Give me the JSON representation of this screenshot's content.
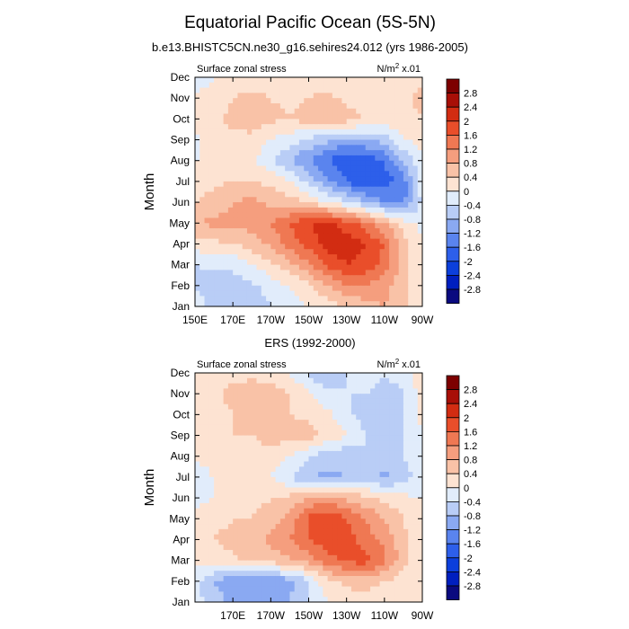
{
  "figure": {
    "title": "Equatorial Pacific Ocean (5S-5N)"
  },
  "chart_data": [
    {
      "type": "heatmap",
      "title": "b.e13.BHISTC5CN.ne30_g16.sehires24.012 (yrs 1986-2005)",
      "left_label": "Surface zonal stress",
      "units_label": {
        "base": "N/m",
        "sup": "2",
        "suffix": " x.01"
      },
      "ylabel": "Month",
      "yticks": [
        "Jan",
        "Feb",
        "Mar",
        "Apr",
        "May",
        "Jun",
        "Jul",
        "Aug",
        "Sep",
        "Oct",
        "Nov",
        "Dec"
      ],
      "xlim": [
        150,
        270
      ],
      "xticks": [
        {
          "value": 150,
          "label": "150E"
        },
        {
          "value": 170,
          "label": "170E"
        },
        {
          "value": 190,
          "label": "170W"
        },
        {
          "value": 210,
          "label": "150W"
        },
        {
          "value": 230,
          "label": "130W"
        },
        {
          "value": 250,
          "label": "110W"
        },
        {
          "value": 270,
          "label": "90W"
        }
      ],
      "x": [
        150,
        160,
        170,
        180,
        190,
        200,
        210,
        220,
        230,
        240,
        250,
        260,
        270
      ],
      "months": [
        "Jan",
        "Feb",
        "Mar",
        "Apr",
        "May",
        "Jun",
        "Jul",
        "Aug",
        "Sep",
        "Oct",
        "Nov",
        "Dec"
      ],
      "z": [
        [
          0.0,
          -0.7,
          -0.7,
          -0.7,
          -0.4,
          -0.2,
          0.0,
          0.2,
          0.4,
          0.6,
          0.8,
          0.5,
          0.0
        ],
        [
          -0.5,
          -0.6,
          -0.6,
          -0.5,
          -0.2,
          0.0,
          0.3,
          0.8,
          1.2,
          1.2,
          1.0,
          0.5,
          0.0
        ],
        [
          -0.4,
          -0.3,
          -0.3,
          0.0,
          0.3,
          0.7,
          1.1,
          1.7,
          2.0,
          1.9,
          1.4,
          0.6,
          0.0
        ],
        [
          0.2,
          0.3,
          0.4,
          0.6,
          0.9,
          1.4,
          1.8,
          2.2,
          2.2,
          2.0,
          1.6,
          0.5,
          0.0
        ],
        [
          0.8,
          0.9,
          0.9,
          1.0,
          1.2,
          1.6,
          2.0,
          2.1,
          1.8,
          1.4,
          0.8,
          0.2,
          -0.1
        ],
        [
          0.4,
          0.6,
          0.8,
          0.9,
          0.7,
          0.6,
          0.3,
          0.0,
          -0.4,
          -0.8,
          -1.2,
          -1.3,
          -0.3
        ],
        [
          0.2,
          0.3,
          0.4,
          0.4,
          0.3,
          0.0,
          -0.5,
          -1.1,
          -1.6,
          -2.0,
          -1.8,
          -1.4,
          -0.2
        ],
        [
          0.0,
          0.0,
          0.0,
          0.0,
          -0.3,
          -0.8,
          -1.2,
          -1.6,
          -2.0,
          -1.9,
          -1.6,
          -0.8,
          0.0
        ],
        [
          -0.1,
          0.2,
          0.3,
          0.3,
          0.0,
          -0.2,
          -0.5,
          -0.7,
          -0.9,
          -0.8,
          -0.6,
          0.0,
          0.1
        ],
        [
          0.1,
          0.3,
          0.5,
          0.6,
          0.5,
          0.4,
          0.6,
          0.8,
          0.6,
          0.4,
          0.2,
          0.3,
          0.4
        ],
        [
          0.1,
          0.2,
          0.4,
          0.5,
          0.4,
          0.3,
          0.4,
          0.5,
          0.3,
          0.2,
          0.1,
          0.3,
          0.5
        ],
        [
          -0.3,
          0.0,
          0.1,
          0.2,
          0.2,
          0.2,
          0.2,
          0.2,
          0.1,
          0.0,
          0.0,
          0.2,
          0.3
        ]
      ]
    },
    {
      "type": "heatmap",
      "title": "ERS (1992-2000)",
      "left_label": "Surface zonal stress",
      "units_label": {
        "base": "N/m",
        "sup": "2",
        "suffix": " x.01"
      },
      "ylabel": "Month",
      "yticks": [
        "Jan",
        "Feb",
        "Mar",
        "Apr",
        "May",
        "Jun",
        "Jul",
        "Aug",
        "Sep",
        "Oct",
        "Nov",
        "Dec"
      ],
      "xlim": [
        150,
        270
      ],
      "xticks": [
        {
          "value": 170,
          "label": "170E"
        },
        {
          "value": 190,
          "label": "170W"
        },
        {
          "value": 210,
          "label": "150W"
        },
        {
          "value": 230,
          "label": "130W"
        },
        {
          "value": 250,
          "label": "110W"
        },
        {
          "value": 270,
          "label": "90W"
        }
      ],
      "x": [
        150,
        160,
        170,
        180,
        190,
        200,
        210,
        220,
        230,
        240,
        250,
        260,
        270
      ],
      "months": [
        "Jan",
        "Feb",
        "Mar",
        "Apr",
        "May",
        "Jun",
        "Jul",
        "Aug",
        "Sep",
        "Oct",
        "Nov",
        "Dec"
      ],
      "z": [
        [
          -0.2,
          -0.6,
          -0.9,
          -0.9,
          -1.2,
          -0.8,
          -0.4,
          0.0,
          0.2,
          0.2,
          0.1,
          0.2,
          0.0
        ],
        [
          -0.3,
          -0.8,
          -1.1,
          -1.2,
          -1.2,
          -0.9,
          -0.4,
          0.3,
          0.5,
          0.6,
          0.4,
          0.2,
          0.0
        ],
        [
          0.2,
          0.3,
          0.3,
          0.5,
          0.6,
          0.7,
          1.0,
          1.4,
          1.7,
          1.8,
          1.3,
          0.6,
          0.0
        ],
        [
          0.3,
          0.4,
          0.5,
          0.7,
          0.9,
          1.2,
          1.6,
          1.9,
          1.8,
          1.4,
          1.1,
          0.5,
          0.0
        ],
        [
          0.2,
          0.3,
          0.4,
          0.4,
          0.6,
          0.9,
          1.7,
          2.0,
          1.6,
          1.2,
          0.8,
          0.4,
          0.0
        ],
        [
          -0.2,
          0.0,
          0.2,
          0.2,
          0.4,
          0.5,
          0.8,
          0.9,
          0.7,
          0.5,
          0.3,
          0.1,
          0.0
        ],
        [
          -0.2,
          0.0,
          0.1,
          0.1,
          0.0,
          -0.4,
          -0.8,
          -0.9,
          -0.8,
          -0.7,
          -0.9,
          -0.6,
          -0.2
        ],
        [
          0.0,
          0.2,
          0.2,
          0.3,
          0.3,
          0.0,
          -0.4,
          -0.6,
          -0.7,
          -0.4,
          -0.5,
          -0.4,
          -0.1
        ],
        [
          0.1,
          0.3,
          0.4,
          0.4,
          0.5,
          0.6,
          0.6,
          0.3,
          0.0,
          -0.4,
          -0.6,
          -0.4,
          0.0
        ],
        [
          0.1,
          0.3,
          0.4,
          0.5,
          0.4,
          0.4,
          0.3,
          0.1,
          -0.3,
          -0.6,
          -0.8,
          -0.4,
          0.1
        ],
        [
          0.2,
          0.3,
          0.5,
          0.6,
          0.6,
          0.4,
          0.1,
          -0.3,
          -0.4,
          -0.4,
          -0.7,
          -0.4,
          0.2
        ],
        [
          0.2,
          0.4,
          0.3,
          0.3,
          0.2,
          0.0,
          -0.5,
          -0.8,
          -0.4,
          0.0,
          -0.3,
          -0.2,
          0.2
        ]
      ]
    }
  ],
  "colorbar": {
    "levels": [
      -2.8,
      -2.4,
      -2,
      -1.6,
      -1.2,
      -0.8,
      -0.4,
      0,
      0.4,
      0.8,
      1.2,
      1.6,
      2,
      2.4,
      2.8
    ],
    "labels": [
      "-2.8",
      "-2.4",
      "-2",
      "-1.6",
      "-1.2",
      "-0.8",
      "-0.4",
      "0",
      "0.4",
      "0.8",
      "1.2",
      "1.6",
      "2",
      "2.4",
      "2.8"
    ],
    "colors": [
      "#0a0a7f",
      "#001fbf",
      "#0c3fdc",
      "#2d5fea",
      "#5a84ee",
      "#8aa9f2",
      "#b9cdf6",
      "#e1ecfb",
      "#fde3d2",
      "#f9c2a7",
      "#f59e7e",
      "#ef7853",
      "#e94e2a",
      "#d22c12",
      "#a80f07",
      "#7d0000"
    ]
  }
}
